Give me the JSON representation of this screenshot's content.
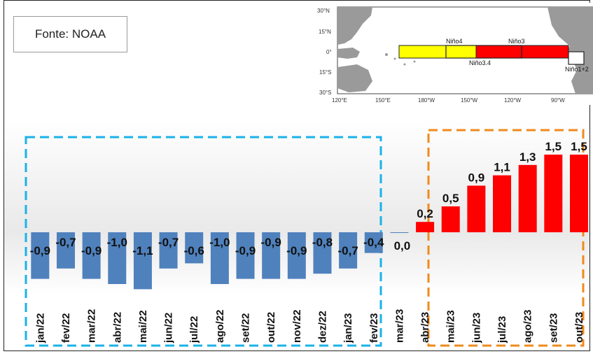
{
  "source_label": "Fonte: NOAA",
  "map_inset": {
    "region_labels": [
      "Niño4",
      "Niño3",
      "Niño3.4",
      "Niño1+2"
    ],
    "lat_labels": [
      "30°N",
      "15°N",
      "0°",
      "15°S",
      "30°S"
    ],
    "lon_labels": [
      "120°E",
      "150°E",
      "180°W",
      "150°W",
      "120°W",
      "90°W"
    ],
    "colors": {
      "nino4": "#ffff00",
      "nino3": "#ff0000",
      "land": "#9a9a9a"
    }
  },
  "chart_data": {
    "type": "bar",
    "categories": [
      "jan/22",
      "fev/22",
      "mar/22",
      "abr/22",
      "mai/22",
      "jun/22",
      "jul/22",
      "ago/22",
      "set/22",
      "out/22",
      "nov/22",
      "dez/22",
      "jan/23",
      "fev/23",
      "mar/23",
      "abr/23",
      "mai/23",
      "jun/23",
      "jul/23",
      "ago/23",
      "set/23",
      "out/23"
    ],
    "values": [
      -0.9,
      -0.7,
      -0.9,
      -1.0,
      -1.1,
      -0.7,
      -0.6,
      -1.0,
      -0.9,
      -0.9,
      -0.9,
      -0.8,
      -0.7,
      -0.4,
      0.0,
      0.2,
      0.5,
      0.9,
      1.1,
      1.3,
      1.5,
      1.5
    ],
    "value_labels": [
      "-0,9",
      "-0,7",
      "-0,9",
      "-1,0",
      "-1,1",
      "-0,7",
      "-0,6",
      "-1,0",
      "-0,9",
      "-0,9",
      "-0,9",
      "-0,8",
      "-0,7",
      "-0,4",
      "0,0",
      "0,2",
      "0,5",
      "0,9",
      "1,1",
      "1,3",
      "1,5",
      "1,5"
    ],
    "title": "",
    "xlabel": "",
    "ylabel": "",
    "colors": {
      "negative": "#4f81bd",
      "positive": "#ff0000",
      "zero": "#4f81bd"
    },
    "highlight_boxes": [
      {
        "from": "jan/22",
        "to": "fev/23",
        "color": "#1ab2e8"
      },
      {
        "from": "mai/23",
        "to": "out/23",
        "color": "#f08a1c"
      }
    ]
  }
}
